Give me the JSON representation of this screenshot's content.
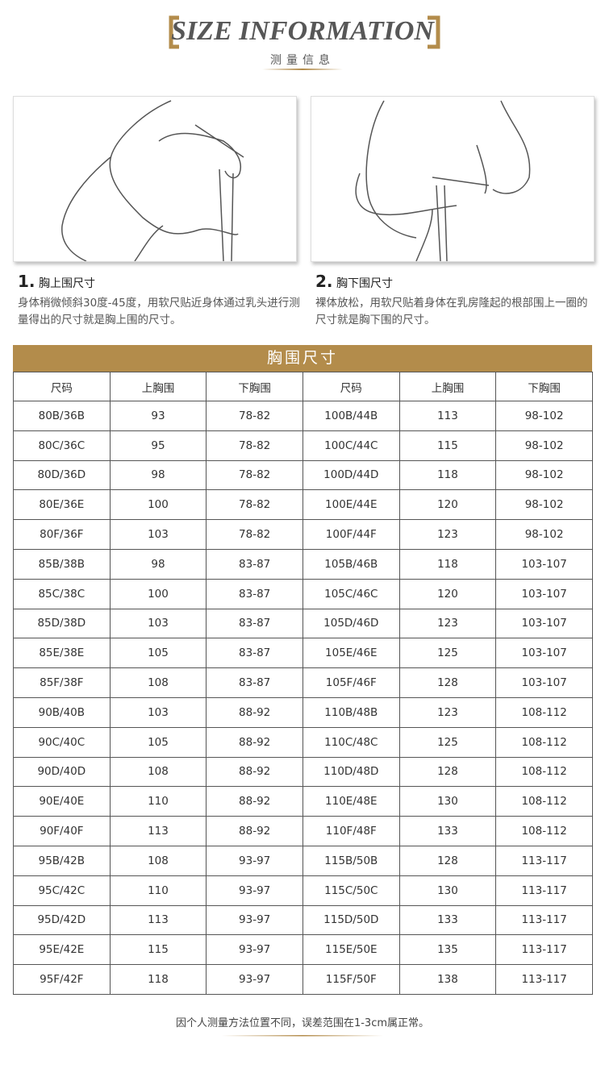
{
  "header": {
    "title": "SIZE INFORMATION",
    "subtitle": "测量信息"
  },
  "steps": [
    {
      "number": "1",
      "title": "胸上围尺寸",
      "text": "身体稍微倾斜30度-45度，用软尺贴近身体通过乳头进行测量得出的尺寸就是胸上围的尺寸。"
    },
    {
      "number": "2",
      "title": "胸下围尺寸",
      "text": "裸体放松，用软尺贴着身体在乳房隆起的根部围上一圈的尺寸就是胸下围的尺寸。"
    }
  ],
  "table": {
    "title": "胸围尺寸",
    "headers": [
      "尺码",
      "上胸围",
      "下胸围",
      "尺码",
      "上胸围",
      "下胸围"
    ],
    "rows": [
      [
        "80B/36B",
        "93",
        "78-82",
        "100B/44B",
        "113",
        "98-102"
      ],
      [
        "80C/36C",
        "95",
        "78-82",
        "100C/44C",
        "115",
        "98-102"
      ],
      [
        "80D/36D",
        "98",
        "78-82",
        "100D/44D",
        "118",
        "98-102"
      ],
      [
        "80E/36E",
        "100",
        "78-82",
        "100E/44E",
        "120",
        "98-102"
      ],
      [
        "80F/36F",
        "103",
        "78-82",
        "100F/44F",
        "123",
        "98-102"
      ],
      [
        "85B/38B",
        "98",
        "83-87",
        "105B/46B",
        "118",
        "103-107"
      ],
      [
        "85C/38C",
        "100",
        "83-87",
        "105C/46C",
        "120",
        "103-107"
      ],
      [
        "85D/38D",
        "103",
        "83-87",
        "105D/46D",
        "123",
        "103-107"
      ],
      [
        "85E/38E",
        "105",
        "83-87",
        "105E/46E",
        "125",
        "103-107"
      ],
      [
        "85F/38F",
        "108",
        "83-87",
        "105F/46F",
        "128",
        "103-107"
      ],
      [
        "90B/40B",
        "103",
        "88-92",
        "110B/48B",
        "123",
        "108-112"
      ],
      [
        "90C/40C",
        "105",
        "88-92",
        "110C/48C",
        "125",
        "108-112"
      ],
      [
        "90D/40D",
        "108",
        "88-92",
        "110D/48D",
        "128",
        "108-112"
      ],
      [
        "90E/40E",
        "110",
        "88-92",
        "110E/48E",
        "130",
        "108-112"
      ],
      [
        "90F/40F",
        "113",
        "88-92",
        "110F/48F",
        "133",
        "108-112"
      ],
      [
        "95B/42B",
        "108",
        "93-97",
        "115B/50B",
        "128",
        "113-117"
      ],
      [
        "95C/42C",
        "110",
        "93-97",
        "115C/50C",
        "130",
        "113-117"
      ],
      [
        "95D/42D",
        "113",
        "93-97",
        "115D/50D",
        "133",
        "113-117"
      ],
      [
        "95E/42E",
        "115",
        "93-97",
        "115E/50E",
        "135",
        "113-117"
      ],
      [
        "95F/42F",
        "118",
        "93-97",
        "115F/50F",
        "138",
        "113-117"
      ]
    ]
  },
  "footer": {
    "note": "因个人测量方法位置不同，误差范围在1-3cm属正常。"
  }
}
